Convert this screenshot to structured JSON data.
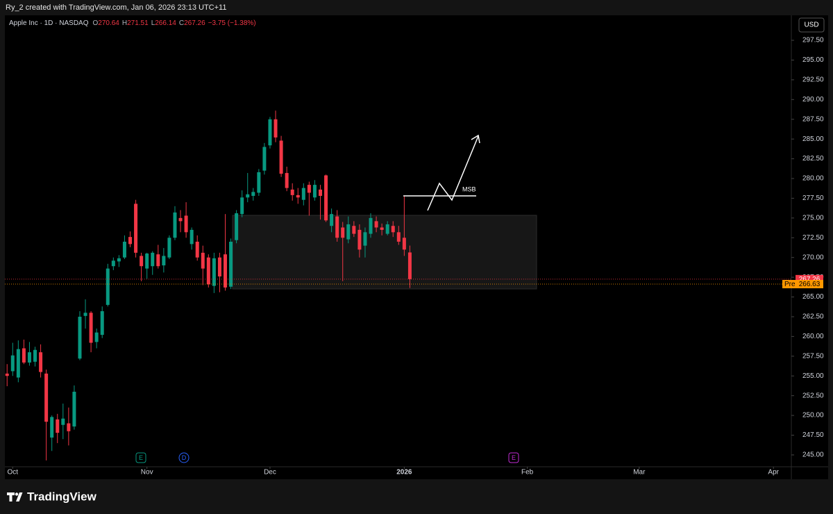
{
  "header": "Ry_2 created with TradingView.com, Jan 06, 2026 23:13 UTC+11",
  "footer_logo": "TradingView",
  "chart_data": {
    "type": "candlestick",
    "title": "Apple Inc · 1D · NASDAQ",
    "ohlc_labels": [
      "O",
      "H",
      "L",
      "C"
    ],
    "change_label": "−3.75 (−1.38%)",
    "currency": "USD",
    "up_color": "#089981",
    "down_color": "#f23645",
    "open": [
      255.3,
      255.6,
      254.8,
      258.5,
      256.7,
      256.8,
      258.0,
      255.3,
      247.2,
      249.5,
      248.8,
      249.0,
      248.6,
      257.2,
      262.6,
      263.0,
      259.3,
      260.2,
      264.0,
      268.9,
      269.5,
      270.0,
      272.6,
      276.8,
      270.2,
      268.6,
      268.9,
      270.4,
      269.0,
      270.0,
      272.5,
      275.0,
      275.3,
      271.7,
      272.0,
      270.6,
      270.0,
      266.4,
      270.0,
      270.4,
      266.3,
      272.2,
      275.5,
      277.6,
      277.8,
      278.2,
      281.0,
      284.2,
      287.5,
      284.8,
      280.7,
      278.6,
      277.9,
      277.3,
      279.2,
      277.6,
      278.6,
      280.4,
      274.0,
      275.2,
      273.8,
      272.3,
      274.0,
      273.5,
      271.5,
      273.0,
      274.6,
      273.8,
      273.0,
      274.0,
      273.2,
      272.5,
      270.64
    ],
    "high": [
      256.5,
      259.2,
      259.5,
      259.6,
      259.3,
      258.7,
      259.0,
      255.8,
      250.0,
      250.2,
      251.5,
      251.0,
      253.8,
      263.2,
      264.7,
      263.2,
      261.0,
      263.8,
      269.2,
      270.0,
      270.3,
      272.8,
      273.3,
      277.3,
      270.6,
      270.6,
      270.8,
      271.6,
      271.2,
      272.8,
      276.5,
      276.0,
      277.0,
      273.8,
      272.8,
      271.5,
      270.4,
      270.6,
      270.6,
      275.5,
      272.4,
      276.0,
      278.5,
      280.7,
      278.8,
      281.2,
      284.5,
      287.8,
      288.6,
      285.4,
      281.5,
      279.4,
      278.8,
      279.4,
      279.6,
      279.8,
      279.2,
      280.5,
      276.2,
      276.0,
      274.5,
      275.2,
      274.6,
      274.2,
      273.8,
      275.6,
      275.2,
      274.3,
      274.6,
      274.6,
      274.0,
      277.8,
      271.51
    ],
    "low": [
      253.7,
      255.0,
      254.2,
      256.5,
      256.3,
      256.2,
      254.8,
      244.3,
      245.5,
      246.5,
      247.0,
      246.2,
      248.2,
      257.0,
      261.0,
      258.0,
      258.5,
      259.8,
      263.8,
      268.4,
      268.8,
      269.8,
      271.3,
      270.0,
      267.0,
      267.3,
      267.8,
      268.6,
      268.1,
      269.8,
      272.2,
      273.2,
      272.5,
      271.0,
      269.6,
      266.5,
      266.2,
      265.5,
      265.6,
      265.8,
      266.0,
      271.8,
      275.1,
      277.0,
      277.2,
      277.8,
      280.5,
      283.8,
      284.6,
      280.2,
      278.4,
      277.2,
      276.8,
      276.6,
      275.3,
      277.2,
      274.8,
      274.5,
      273.2,
      272.0,
      267.0,
      271.8,
      272.6,
      270.0,
      270.0,
      272.5,
      273.2,
      272.8,
      272.8,
      272.6,
      271.6,
      270.2,
      266.14
    ],
    "close": [
      255.0,
      257.6,
      258.4,
      256.7,
      258.0,
      258.3,
      255.5,
      249.2,
      249.8,
      247.8,
      249.6,
      248.0,
      253.0,
      262.5,
      263.0,
      259.2,
      260.5,
      263.2,
      268.6,
      269.6,
      269.9,
      272.0,
      271.7,
      270.6,
      268.9,
      270.5,
      270.6,
      268.9,
      270.2,
      272.5,
      275.7,
      274.6,
      273.2,
      273.5,
      270.0,
      268.6,
      266.6,
      269.9,
      267.6,
      266.2,
      272.0,
      275.6,
      277.6,
      278.0,
      278.3,
      280.8,
      284.0,
      287.5,
      285.2,
      280.6,
      278.8,
      277.9,
      277.6,
      278.8,
      278.2,
      279.2,
      277.8,
      274.7,
      275.5,
      272.5,
      272.5,
      274.2,
      273.0,
      271.0,
      273.2,
      275.0,
      273.8,
      273.5,
      274.2,
      273.2,
      272.0,
      271.0,
      267.26
    ],
    "premarket": {
      "label": "Pre",
      "value": 266.63
    },
    "annotation": "MSB",
    "events": [
      "E",
      "D",
      "E"
    ],
    "xlim": [
      -0.4,
      140.2
    ],
    "xticks": [
      {
        "value": 1,
        "label": "Oct"
      },
      {
        "value": 25,
        "label": "Nov"
      },
      {
        "value": 47,
        "label": "Dec"
      },
      {
        "value": 71,
        "label": "2026"
      },
      {
        "value": 93,
        "label": "Feb"
      },
      {
        "value": 113,
        "label": "Mar"
      },
      {
        "value": 137,
        "label": "Apr"
      }
    ],
    "ylim": [
      243.5,
      300.67
    ],
    "yticks": [
      {
        "value": 245,
        "label": "245.00"
      },
      {
        "value": 247.5,
        "label": "247.50"
      },
      {
        "value": 250,
        "label": "250.00"
      },
      {
        "value": 252.5,
        "label": "252.50"
      },
      {
        "value": 255,
        "label": "255.00"
      },
      {
        "value": 257.5,
        "label": "257.50"
      },
      {
        "value": 260,
        "label": "260.00"
      },
      {
        "value": 262.5,
        "label": "262.50"
      },
      {
        "value": 265,
        "label": "265.00"
      },
      {
        "value": 267.5,
        "label": "267.50"
      },
      {
        "value": 270,
        "label": "270.00"
      },
      {
        "value": 272.5,
        "label": "272.50"
      },
      {
        "value": 275,
        "label": "275.00"
      },
      {
        "value": 277.5,
        "label": "277.50"
      },
      {
        "value": 280,
        "label": "280.00"
      },
      {
        "value": 282.5,
        "label": "282.50"
      },
      {
        "value": 285,
        "label": "285.00"
      },
      {
        "value": 287.5,
        "label": "287.50"
      },
      {
        "value": 290,
        "label": "290.00"
      },
      {
        "value": 292.5,
        "label": "292.50"
      },
      {
        "value": 295,
        "label": "295.00"
      },
      {
        "value": 297.5,
        "label": "297.50"
      }
    ]
  }
}
